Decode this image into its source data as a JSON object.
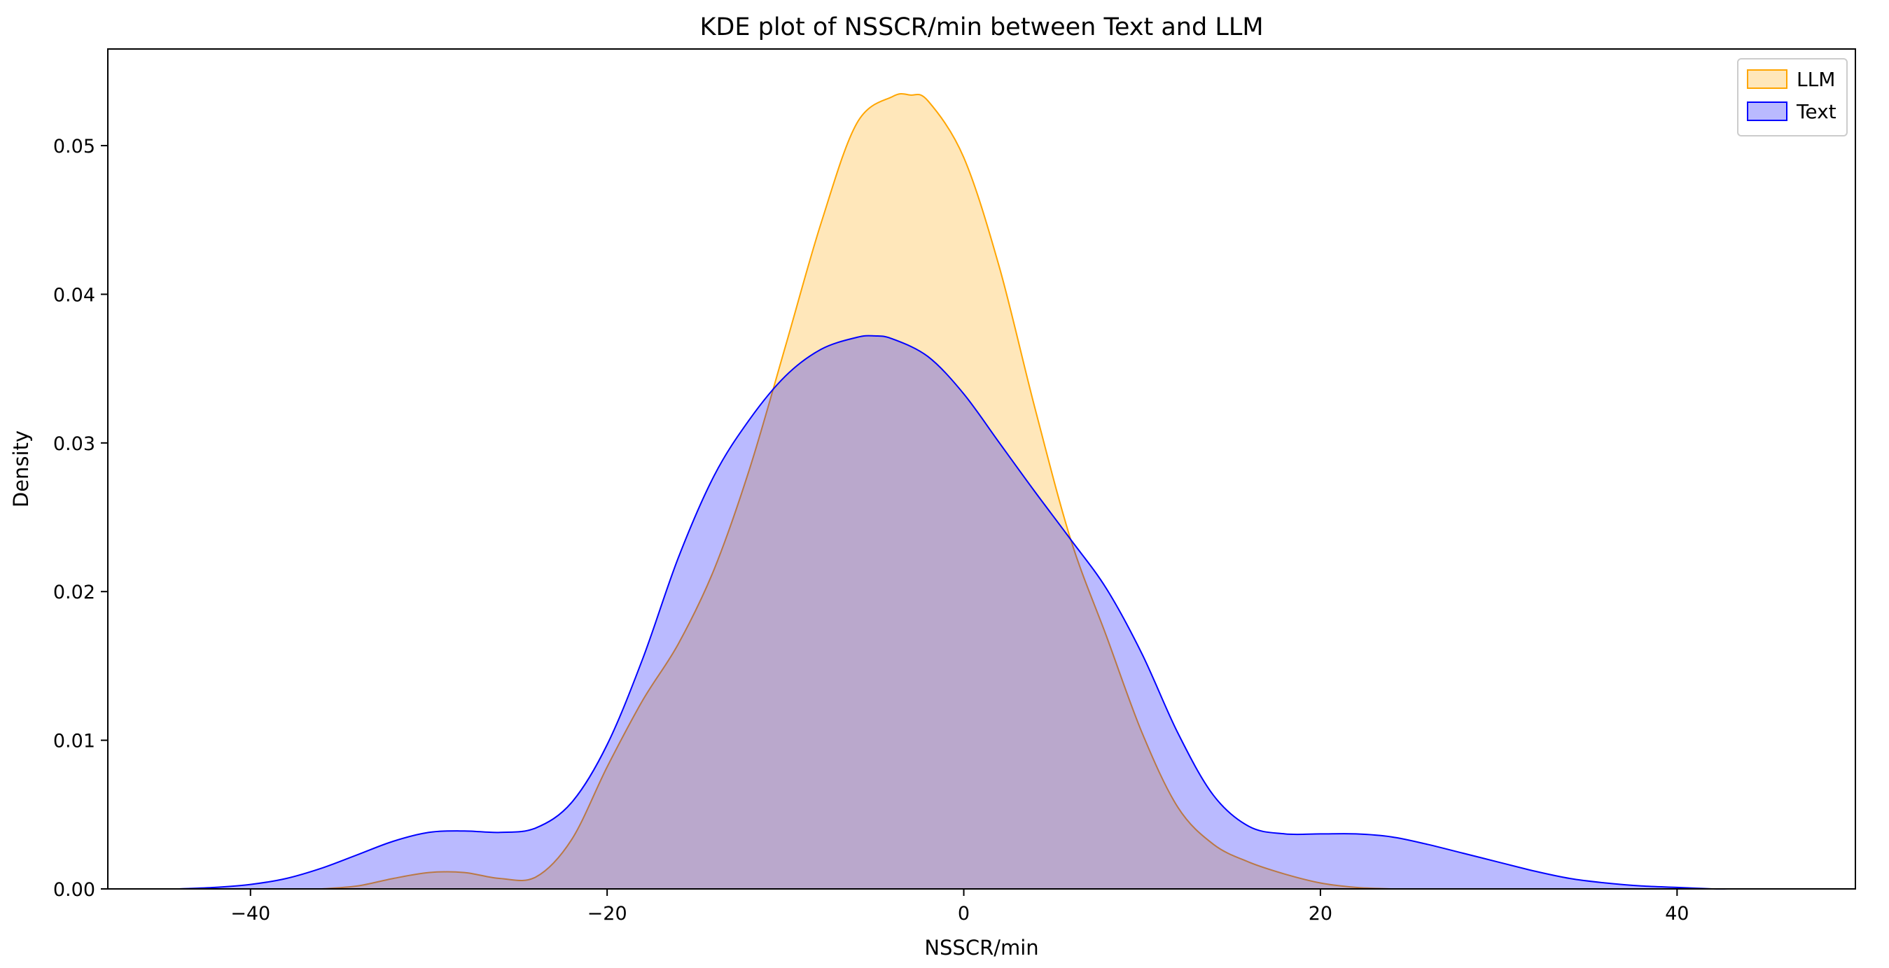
{
  "chart_data": {
    "type": "area",
    "title": "KDE plot of NSSCR/min between Text and LLM",
    "xlabel": "NSSCR/min",
    "ylabel": "Density",
    "xlim": [
      -48,
      50
    ],
    "ylim": [
      0,
      0.0565
    ],
    "xticks": [
      -40,
      -20,
      0,
      20,
      40
    ],
    "xtick_labels": [
      "−40",
      "−20",
      "0",
      "20",
      "40"
    ],
    "yticks": [
      0,
      0.01,
      0.02,
      0.03,
      0.04,
      0.05
    ],
    "ytick_labels": [
      "0.00",
      "0.01",
      "0.02",
      "0.03",
      "0.04",
      "0.05"
    ],
    "grid": false,
    "legend": "top-right",
    "series": [
      {
        "name": "LLM",
        "line_color": "#ffa500",
        "fill_color": "#ffa500",
        "fill_opacity": 0.27,
        "x": [
          -36,
          -34,
          -32,
          -30,
          -28,
          -26,
          -24,
          -22,
          -20,
          -18,
          -16,
          -14,
          -12,
          -10,
          -8,
          -6,
          -4,
          -3,
          -2,
          0,
          2,
          4,
          6,
          8,
          10,
          12,
          14,
          16,
          18,
          20,
          22,
          24
        ],
        "y": [
          0.0,
          0.0002,
          0.0007,
          0.0011,
          0.0011,
          0.0007,
          0.0008,
          0.0033,
          0.0082,
          0.0127,
          0.0165,
          0.0215,
          0.0283,
          0.0365,
          0.0448,
          0.0515,
          0.0533,
          0.0534,
          0.053,
          0.0492,
          0.0418,
          0.0323,
          0.0235,
          0.017,
          0.0105,
          0.0055,
          0.003,
          0.0018,
          0.001,
          0.0004,
          0.0001,
          0.0
        ]
      },
      {
        "name": "Text",
        "line_color": "#0000ff",
        "fill_color": "#0000ff",
        "fill_opacity": 0.27,
        "x": [
          -44,
          -42,
          -40,
          -38,
          -36,
          -34,
          -32,
          -30,
          -28,
          -26,
          -24,
          -22,
          -20,
          -18,
          -16,
          -14,
          -12,
          -10,
          -8,
          -6,
          -5,
          -4,
          -2,
          0,
          2,
          4,
          6,
          8,
          10,
          12,
          14,
          16,
          18,
          20,
          22,
          24,
          26,
          28,
          30,
          32,
          34,
          36,
          38,
          40,
          42,
          43
        ],
        "y": [
          0.0,
          0.0001,
          0.0003,
          0.0007,
          0.0014,
          0.0023,
          0.0032,
          0.0038,
          0.0039,
          0.0038,
          0.0041,
          0.0058,
          0.0097,
          0.0155,
          0.0223,
          0.0278,
          0.0316,
          0.0345,
          0.0363,
          0.0371,
          0.0372,
          0.037,
          0.0358,
          0.0333,
          0.03,
          0.0267,
          0.0235,
          0.0202,
          0.0158,
          0.0105,
          0.0063,
          0.0042,
          0.0037,
          0.0037,
          0.0037,
          0.0035,
          0.003,
          0.0024,
          0.0018,
          0.0012,
          0.0007,
          0.0004,
          0.0002,
          0.0001,
          0.0,
          0.0
        ]
      }
    ]
  }
}
